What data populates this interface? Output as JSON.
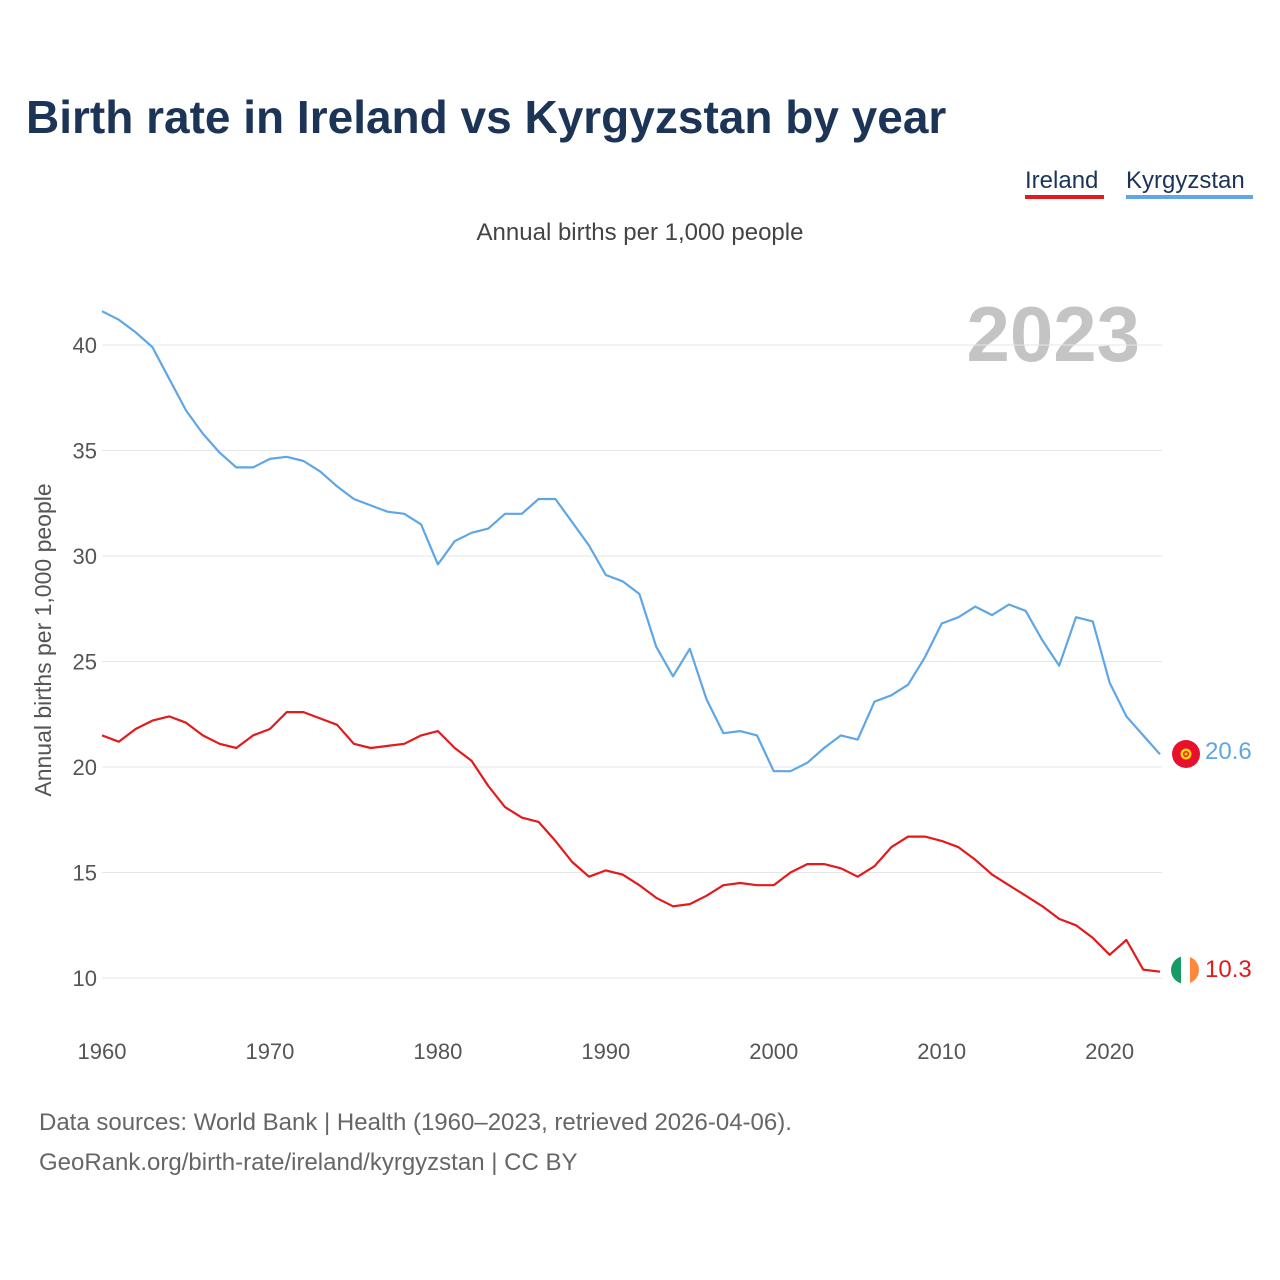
{
  "title": "Birth rate in Ireland vs Kyrgyzstan by year",
  "legend": [
    {
      "label": "Ireland",
      "color": "#e31a1c"
    },
    {
      "label": "Kyrgyzstan",
      "color": "#5fa6e5"
    }
  ],
  "year_watermark": "2023",
  "chart_data": {
    "type": "line",
    "title": "Birth rate in Ireland vs Kyrgyzstan by year",
    "subtitle": "Annual births per 1,000 people",
    "ylabel": "Annual births per 1,000 people",
    "xlabel": "",
    "xlim": [
      1960,
      2023
    ],
    "ylim": [
      7,
      42
    ],
    "x_ticks": [
      1960,
      1970,
      1980,
      1990,
      2000,
      2010,
      2020
    ],
    "y_ticks": [
      10,
      15,
      20,
      25,
      30,
      35,
      40
    ],
    "grid": true,
    "legend_position": "top-right",
    "x": [
      1960,
      1961,
      1962,
      1963,
      1964,
      1965,
      1966,
      1967,
      1968,
      1969,
      1970,
      1971,
      1972,
      1973,
      1974,
      1975,
      1976,
      1977,
      1978,
      1979,
      1980,
      1981,
      1982,
      1983,
      1984,
      1985,
      1986,
      1987,
      1988,
      1989,
      1990,
      1991,
      1992,
      1993,
      1994,
      1995,
      1996,
      1997,
      1998,
      1999,
      2000,
      2001,
      2002,
      2003,
      2004,
      2005,
      2006,
      2007,
      2008,
      2009,
      2010,
      2011,
      2012,
      2013,
      2014,
      2015,
      2016,
      2017,
      2018,
      2019,
      2020,
      2021,
      2022,
      2023
    ],
    "series": [
      {
        "name": "Ireland",
        "color": "#e31a1c",
        "end_label": "10.3",
        "values": [
          21.5,
          21.2,
          21.8,
          22.2,
          22.4,
          22.1,
          21.5,
          21.1,
          20.9,
          21.5,
          21.8,
          22.6,
          22.6,
          22.3,
          22.0,
          21.1,
          20.9,
          21.0,
          21.1,
          21.5,
          21.7,
          20.9,
          20.3,
          19.1,
          18.1,
          17.6,
          17.4,
          16.5,
          15.5,
          14.8,
          15.1,
          14.9,
          14.4,
          13.8,
          13.4,
          13.5,
          13.9,
          14.4,
          14.5,
          14.4,
          14.4,
          15.0,
          15.4,
          15.4,
          15.2,
          14.8,
          15.3,
          16.2,
          16.7,
          16.7,
          16.5,
          16.2,
          15.6,
          14.9,
          14.4,
          13.9,
          13.4,
          12.8,
          12.5,
          11.9,
          11.1,
          11.8,
          10.4,
          10.3
        ]
      },
      {
        "name": "Kyrgyzstan",
        "color": "#5fa6e5",
        "end_label": "20.6",
        "values": [
          41.6,
          41.2,
          40.6,
          39.9,
          38.4,
          36.9,
          35.8,
          34.9,
          34.2,
          34.2,
          34.6,
          34.7,
          34.5,
          34.0,
          33.3,
          32.7,
          32.4,
          32.1,
          32.0,
          31.5,
          29.6,
          30.7,
          31.1,
          31.3,
          32.0,
          32.0,
          32.7,
          32.7,
          31.6,
          30.5,
          29.1,
          28.8,
          28.2,
          25.7,
          24.3,
          25.6,
          23.2,
          21.6,
          21.7,
          21.5,
          19.8,
          19.8,
          20.2,
          20.9,
          21.5,
          21.3,
          23.1,
          23.4,
          23.9,
          25.2,
          26.8,
          27.1,
          27.6,
          27.2,
          27.7,
          27.4,
          26.0,
          24.8,
          27.1,
          26.9,
          24.0,
          22.4,
          21.5,
          20.6
        ]
      }
    ]
  },
  "source": {
    "line1": "Data sources: World Bank | Health (1960–2023, retrieved 2026-04-06).",
    "line2": "GeoRank.org/birth-rate/ireland/kyrgyzstan | CC BY"
  }
}
